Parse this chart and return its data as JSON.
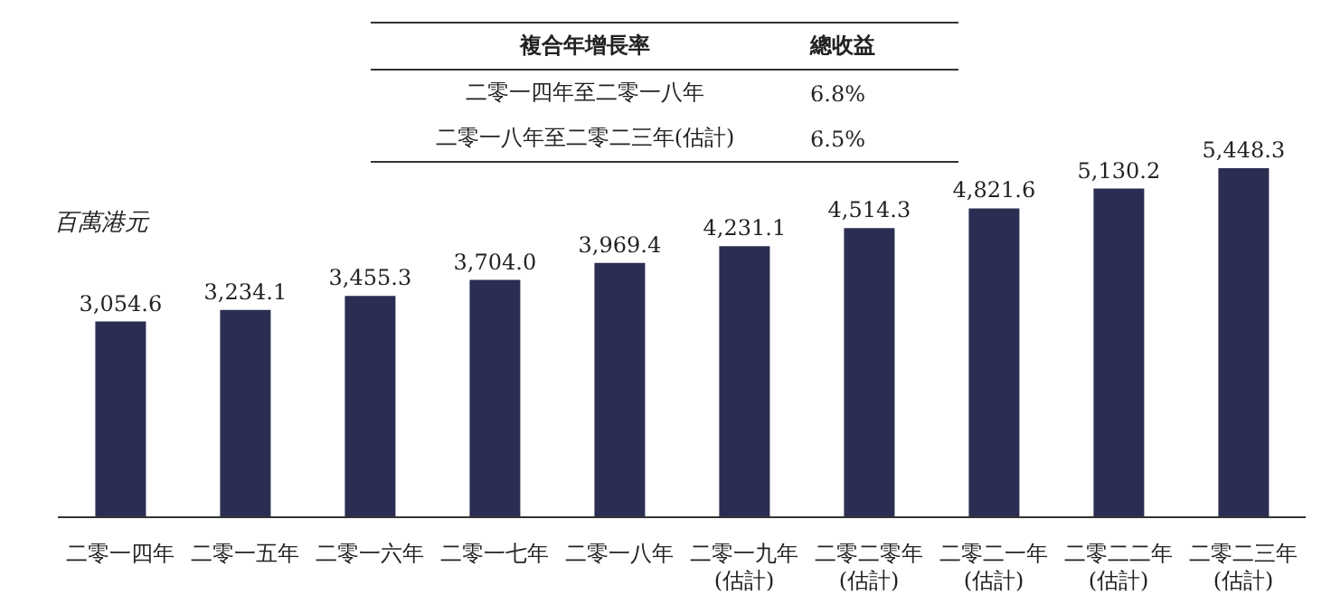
{
  "chart_data": {
    "type": "bar",
    "ylabel": "百萬港元",
    "categories": [
      "二零一四年",
      "二零一五年",
      "二零一六年",
      "二零一七年",
      "二零一八年",
      "二零一九年\n(估計)",
      "二零二零年\n(估計)",
      "二零二一年\n(估計)",
      "二零二二年\n(估計)",
      "二零二三年\n(估計)"
    ],
    "values": [
      3054.6,
      3234.1,
      3455.3,
      3704.0,
      3969.4,
      4231.1,
      4514.3,
      4821.6,
      5130.2,
      5448.3
    ],
    "value_labels": [
      "3,054.6",
      "3,234.1",
      "3,455.3",
      "3,704.0",
      "3,969.4",
      "4,231.1",
      "4,514.3",
      "4,821.6",
      "5,130.2",
      "5,448.3"
    ],
    "color": "#2b2d52",
    "annotations": [
      "複合年增長率",
      "總收益",
      "二零一四年至二零一八年",
      "6.8%",
      "二零一八年至二零二三年(估計)",
      "6.5%"
    ]
  }
}
